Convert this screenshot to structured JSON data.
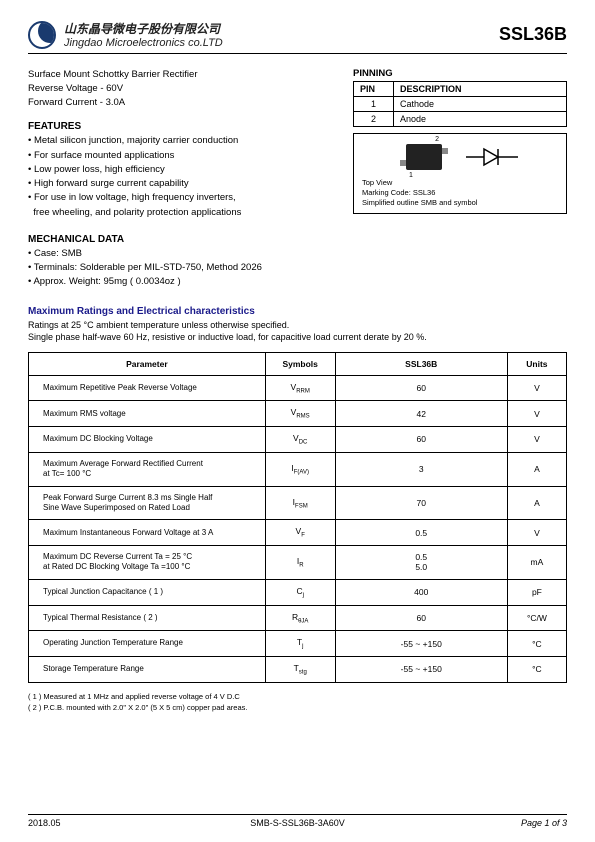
{
  "header": {
    "company_cn": "山东晶导微电子股份有限公司",
    "company_en": "Jingdao Microelectronics co.LTD",
    "part_number": "SSL36B"
  },
  "intro": {
    "line1": "Surface Mount Schottky Barrier Rectifier",
    "line2": "Reverse Voltage - 60V",
    "line3": "Forward Current - 3.0A"
  },
  "features": {
    "title": "FEATURES",
    "items": [
      "Metal silicon junction, majority carrier conduction",
      "For surface mounted applications",
      "Low power loss, high efficiency",
      "High forward surge current capability",
      "For use in low voltage, high frequency inverters,"
    ],
    "item5_cont": "  free wheeling, and polarity protection applications"
  },
  "pinning": {
    "title": "PINNING",
    "col_pin": "PIN",
    "col_desc": "DESCRIPTION",
    "rows": [
      {
        "pin": "1",
        "desc": "Cathode"
      },
      {
        "pin": "2",
        "desc": "Anode"
      }
    ]
  },
  "symbol_box": {
    "pin1": "1",
    "pin2": "2",
    "line1": "Top View",
    "line2": "Marking Code: SSL36",
    "line3": "Simplified outline SMB and symbol"
  },
  "mechanical": {
    "title": "MECHANICAL DATA",
    "items": [
      "Case: SMB",
      "Terminals: Solderable per MIL-STD-750, Method 2026",
      "Approx. Weight: 95mg ( 0.0034oz )"
    ]
  },
  "max_ratings": {
    "title": "Maximum Ratings and Electrical characteristics",
    "desc1": "Ratings at 25 °C ambient temperature unless otherwise specified.",
    "desc2": "Single phase half-wave 60 Hz, resistive or inductive load, for capacitive load current derate by 20 %."
  },
  "table": {
    "headers": {
      "param": "Parameter",
      "symbols": "Symbols",
      "part": "SSL36B",
      "units": "Units"
    },
    "rows": [
      {
        "param": "Maximum Repetitive Peak Reverse Voltage",
        "sym": "V",
        "sub": "RRM",
        "val": "60",
        "unit": "V"
      },
      {
        "param": "Maximum RMS voltage",
        "sym": "V",
        "sub": "RMS",
        "val": "42",
        "unit": "V"
      },
      {
        "param": "Maximum DC Blocking Voltage",
        "sym": "V",
        "sub": "DC",
        "val": "60",
        "unit": "V"
      },
      {
        "param": "Maximum Average Forward Rectified Current\nat Tc= 100 °C",
        "sym": "I",
        "sub": "F(AV)",
        "val": "3",
        "unit": "A"
      },
      {
        "param": "Peak Forward Surge Current 8.3 ms Single Half\nSine Wave Superimposed on Rated Load",
        "sym": "I",
        "sub": "FSM",
        "val": "70",
        "unit": "A"
      },
      {
        "param": "Maximum Instantaneous Forward Voltage at 3 A",
        "sym": "V",
        "sub": "F",
        "val": "0.5",
        "unit": "V"
      },
      {
        "param": "Maximum DC Reverse Current      Ta = 25 °C\nat Rated DC Blocking Voltage       Ta =100 °C",
        "sym": "I",
        "sub": "R",
        "val": "0.5\n5.0",
        "unit": "mA"
      },
      {
        "param": "Typical Junction Capacitance  ( 1 )",
        "sym": "C",
        "sub": "j",
        "val": "400",
        "unit": "pF"
      },
      {
        "param": "Typical Thermal Resistance ( 2 )",
        "sym": "R",
        "sub": "θJA",
        "val": "60",
        "unit": "°C/W"
      },
      {
        "param": "Operating Junction Temperature Range",
        "sym": "T",
        "sub": "j",
        "val": "-55 ~ +150",
        "unit": "°C"
      },
      {
        "param": "Storage Temperature Range",
        "sym": "T",
        "sub": "stg",
        "val": "-55 ~ +150",
        "unit": "°C"
      }
    ]
  },
  "footnotes": {
    "n1": "( 1 ) Measured at 1 MHz and applied reverse voltage of 4 V D.C",
    "n2": "( 2 ) P.C.B. mounted with 2.0\" X 2.0\" (5 X 5 cm) copper pad areas."
  },
  "footer": {
    "date": "2018.05",
    "doc": "SMB-S-SSL36B-3A60V",
    "page": "Page 1 of 3"
  },
  "colors": {
    "title_blue": "#1a1a8a",
    "logo_blue": "#1a3a6e"
  }
}
